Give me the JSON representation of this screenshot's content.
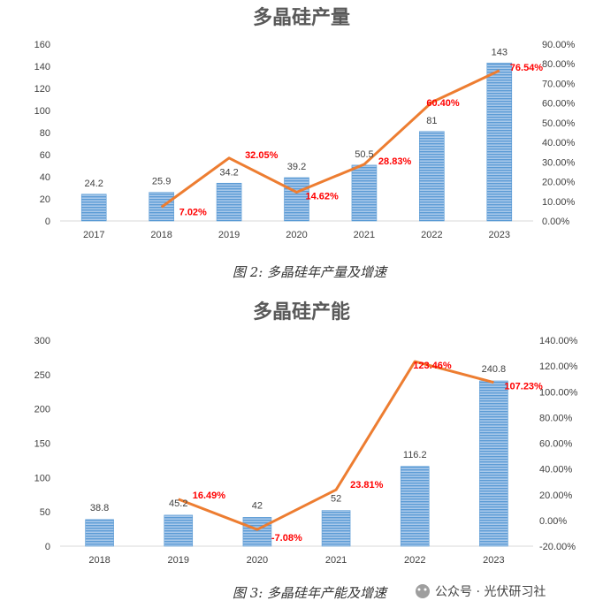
{
  "colors": {
    "bar": "#6fa8dc",
    "bar_light": "#a9c9ea",
    "line": "#ed7d31",
    "pct_label": "#ff0000",
    "axis": "#d9d9d9"
  },
  "watermark": "公众号 · 光伏研习社",
  "chart_data": [
    {
      "type": "bar",
      "title": "多晶硅产量",
      "caption": "图 2:  多晶硅年产量及增速",
      "categories": [
        "2017",
        "2018",
        "2019",
        "2020",
        "2021",
        "2022",
        "2023"
      ],
      "series": [
        {
          "values": [
            24.2,
            25.9,
            34.2,
            39.2,
            50.5,
            81,
            143
          ]
        },
        {
          "type": "line",
          "axis": "right",
          "values": [
            null,
            7.02,
            32.05,
            14.62,
            28.83,
            60.4,
            76.54
          ]
        }
      ],
      "bar_labels": [
        "24.2",
        "25.9",
        "34.2",
        "39.2",
        "50.5",
        "81",
        "143"
      ],
      "line_labels": [
        "",
        "7.02%",
        "32.05%",
        "14.62%",
        "28.83%",
        "60.40%",
        "76.54%"
      ],
      "ylim": [
        0,
        160
      ],
      "yticks": [
        "0",
        "20",
        "40",
        "60",
        "80",
        "100",
        "120",
        "140",
        "160"
      ],
      "y2lim": [
        0,
        90
      ],
      "y2ticks": [
        "0.00%",
        "10.00%",
        "20.00%",
        "30.00%",
        "40.00%",
        "50.00%",
        "60.00%",
        "70.00%",
        "80.00%",
        "90.00%"
      ],
      "xlabel": "",
      "ylabel": "",
      "grid": false,
      "legend": "none"
    },
    {
      "type": "bar",
      "title": "多晶硅产能",
      "caption": "图 3:  多晶硅年产能及增速",
      "categories": [
        "2018",
        "2019",
        "2020",
        "2021",
        "2022",
        "2023"
      ],
      "series": [
        {
          "values": [
            38.8,
            45.2,
            42,
            52,
            116.2,
            240.8
          ]
        },
        {
          "type": "line",
          "axis": "right",
          "values": [
            null,
            16.49,
            -7.08,
            23.81,
            123.46,
            107.23
          ]
        }
      ],
      "bar_labels": [
        "38.8",
        "45.2",
        "42",
        "52",
        "116.2",
        "240.8"
      ],
      "line_labels": [
        "",
        "16.49%",
        "-7.08%",
        "23.81%",
        "123.46%",
        "107.23%"
      ],
      "ylim": [
        0,
        300
      ],
      "yticks": [
        "0",
        "50",
        "100",
        "150",
        "200",
        "250",
        "300"
      ],
      "y2lim": [
        -20,
        140
      ],
      "y2ticks": [
        "-20.00%",
        "0.00%",
        "20.00%",
        "40.00%",
        "60.00%",
        "80.00%",
        "100.00%",
        "120.00%",
        "140.00%"
      ],
      "xlabel": "",
      "ylabel": "",
      "grid": false,
      "legend": "none"
    }
  ]
}
